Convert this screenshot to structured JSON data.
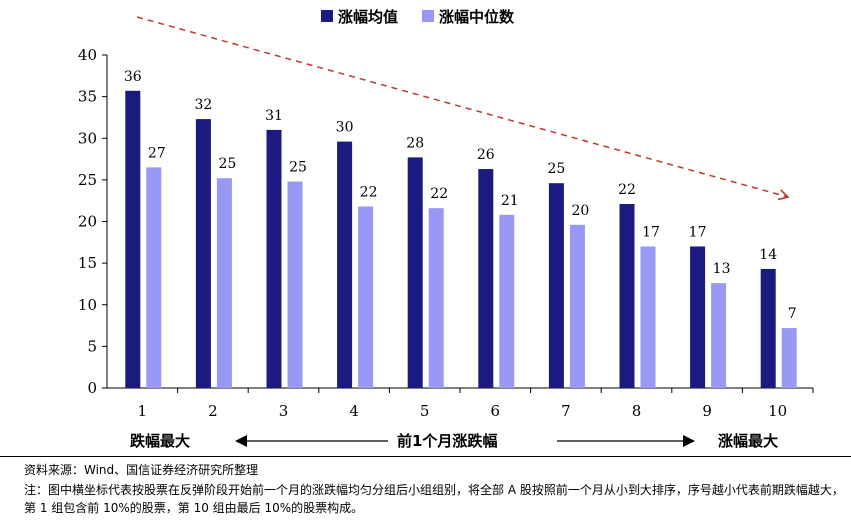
{
  "chart_data": {
    "type": "bar",
    "categories": [
      "1",
      "2",
      "3",
      "4",
      "5",
      "6",
      "7",
      "8",
      "9",
      "10"
    ],
    "series": [
      {
        "name": "涨幅均值",
        "color": "#1a1a80",
        "values": [
          35.7,
          32.3,
          31.0,
          29.6,
          27.7,
          26.3,
          24.6,
          22.1,
          17.0,
          14.3
        ],
        "labels": [
          "36",
          "32",
          "31",
          "30",
          "28",
          "26",
          "25",
          "22",
          "17",
          "14"
        ]
      },
      {
        "name": "涨幅中位数",
        "color": "#9999f5",
        "values": [
          26.5,
          25.2,
          24.8,
          21.8,
          21.6,
          20.8,
          19.6,
          17.0,
          12.6,
          7.2
        ],
        "labels": [
          "27",
          "25",
          "25",
          "22",
          "22",
          "21",
          "20",
          "17",
          "13",
          "7"
        ]
      }
    ],
    "ylim": [
      0,
      40
    ],
    "yticks": [
      "0",
      "5",
      "10",
      "15",
      "20",
      "25",
      "30",
      "35",
      "40"
    ],
    "grid": false,
    "legend_position": "top",
    "trend_arrow": "dashed red arrow pointing down-right"
  },
  "axis_captions": {
    "left": "跌幅最大",
    "center": "前1个月涨跌幅",
    "right": "涨幅最大"
  },
  "footer": {
    "source": "资料来源：Wind、国信证券经济研究所整理",
    "note": "注：图中横坐标代表按股票在反弹阶段开始前一个月的涨跌幅均匀分组后小组组别，将全部 A 股按照前一个月从小到大排序，序号越小代表前期跌幅越大，第 1 组包含前 10%的股票，第 10 组由最后 10%的股票构成。"
  }
}
